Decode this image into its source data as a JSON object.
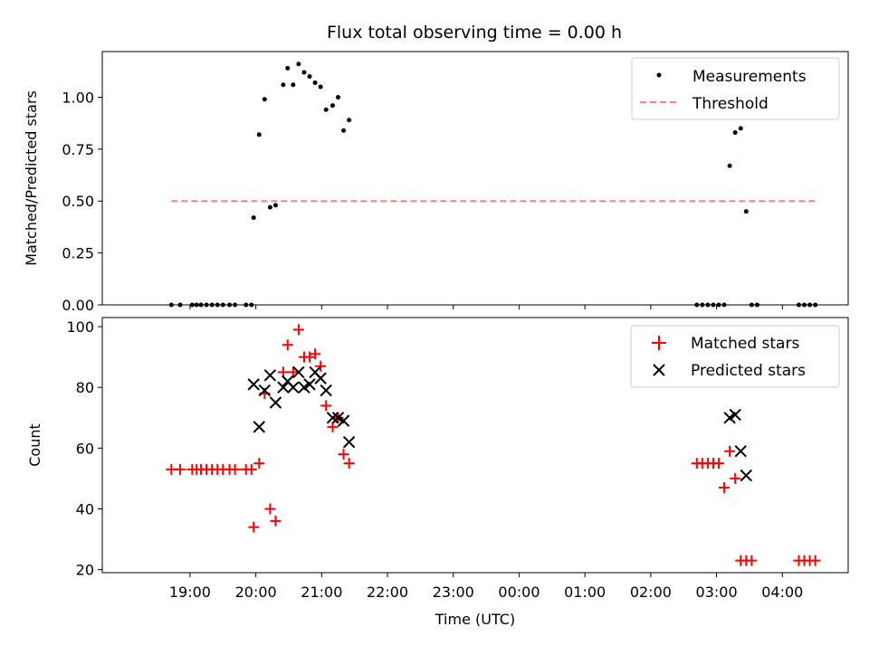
{
  "figure": {
    "title": "Flux total observing time = 0.00 h",
    "xlabel": "Time (UTC)",
    "x_ticks": [
      "19:00",
      "20:00",
      "21:00",
      "22:00",
      "23:00",
      "00:00",
      "01:00",
      "02:00",
      "03:00",
      "04:00"
    ]
  },
  "chart_data": [
    {
      "type": "scatter",
      "panel": "top",
      "ylabel": "Matched/Predicted stars",
      "ylim": [
        0,
        1.22
      ],
      "y_ticks": [
        "0.00",
        "0.25",
        "0.50",
        "0.75",
        "1.00"
      ],
      "legend": {
        "placement": "top-right"
      },
      "colors": {
        "measurements": "#000000",
        "threshold": "#ff7f7f"
      },
      "series": [
        {
          "name": "Measurements",
          "kind": "points",
          "points": [
            [
              "18:43",
              0
            ],
            [
              "18:51",
              0
            ],
            [
              "19:02",
              0
            ],
            [
              "19:06",
              0
            ],
            [
              "19:10",
              0
            ],
            [
              "19:15",
              0
            ],
            [
              "19:20",
              0
            ],
            [
              "19:25",
              0
            ],
            [
              "19:30",
              0
            ],
            [
              "19:36",
              0
            ],
            [
              "19:41",
              0
            ],
            [
              "19:51",
              0
            ],
            [
              "19:56",
              0
            ],
            [
              "19:58",
              0.42
            ],
            [
              "20:03",
              0.82
            ],
            [
              "20:08",
              0.99
            ],
            [
              "20:13",
              0.47
            ],
            [
              "20:18",
              0.48
            ],
            [
              "20:25",
              1.06
            ],
            [
              "20:29",
              1.14
            ],
            [
              "20:34",
              1.06
            ],
            [
              "20:39",
              1.16
            ],
            [
              "20:44",
              1.12
            ],
            [
              "20:49",
              1.1
            ],
            [
              "20:54",
              1.07
            ],
            [
              "20:59",
              1.05
            ],
            [
              "21:04",
              0.94
            ],
            [
              "21:10",
              0.96
            ],
            [
              "21:15",
              1.0
            ],
            [
              "21:20",
              0.84
            ],
            [
              "21:25",
              0.89
            ],
            [
              "02:42",
              0
            ],
            [
              "02:47",
              0
            ],
            [
              "02:52",
              0
            ],
            [
              "02:57",
              0
            ],
            [
              "03:02",
              0
            ],
            [
              "03:07",
              0
            ],
            [
              "03:12",
              0.67
            ],
            [
              "03:17",
              0.83
            ],
            [
              "03:22",
              0.85
            ],
            [
              "03:27",
              0.45
            ],
            [
              "03:32",
              0
            ],
            [
              "03:37",
              0
            ],
            [
              "04:15",
              0
            ],
            [
              "04:20",
              0
            ],
            [
              "04:25",
              0
            ],
            [
              "04:30",
              0
            ]
          ]
        },
        {
          "name": "Threshold",
          "kind": "line",
          "points": [
            [
              "18:43",
              0.5
            ],
            [
              "04:30",
              0.5
            ]
          ]
        }
      ]
    },
    {
      "type": "scatter",
      "panel": "bottom",
      "ylabel": "Count",
      "ylim": [
        19,
        103
      ],
      "y_ticks": [
        "20",
        "40",
        "60",
        "80",
        "100"
      ],
      "legend": {
        "placement": "top-right"
      },
      "colors": {
        "matched": "#ff0000",
        "predicted": "#000000"
      },
      "series": [
        {
          "name": "Matched stars",
          "marker": "plus",
          "points": [
            [
              "18:43",
              53
            ],
            [
              "18:51",
              53
            ],
            [
              "19:02",
              53
            ],
            [
              "19:06",
              53
            ],
            [
              "19:10",
              53
            ],
            [
              "19:15",
              53
            ],
            [
              "19:20",
              53
            ],
            [
              "19:25",
              53
            ],
            [
              "19:30",
              53
            ],
            [
              "19:36",
              53
            ],
            [
              "19:41",
              53
            ],
            [
              "19:51",
              53
            ],
            [
              "19:56",
              53
            ],
            [
              "19:58",
              34
            ],
            [
              "20:03",
              55
            ],
            [
              "20:08",
              78
            ],
            [
              "20:13",
              40
            ],
            [
              "20:18",
              36
            ],
            [
              "20:25",
              85
            ],
            [
              "20:29",
              94
            ],
            [
              "20:34",
              85
            ],
            [
              "20:39",
              99
            ],
            [
              "20:44",
              90
            ],
            [
              "20:49",
              90
            ],
            [
              "20:54",
              91
            ],
            [
              "20:59",
              87
            ],
            [
              "21:04",
              74
            ],
            [
              "21:10",
              67
            ],
            [
              "21:15",
              70
            ],
            [
              "21:20",
              58
            ],
            [
              "21:25",
              55
            ],
            [
              "02:42",
              55
            ],
            [
              "02:47",
              55
            ],
            [
              "02:52",
              55
            ],
            [
              "02:57",
              55
            ],
            [
              "03:02",
              55
            ],
            [
              "03:07",
              47
            ],
            [
              "03:12",
              59
            ],
            [
              "03:17",
              50
            ],
            [
              "03:22",
              23
            ],
            [
              "03:27",
              23
            ],
            [
              "03:32",
              23
            ],
            [
              "04:15",
              23
            ],
            [
              "04:20",
              23
            ],
            [
              "04:25",
              23
            ],
            [
              "04:30",
              23
            ]
          ]
        },
        {
          "name": "Predicted stars",
          "marker": "x",
          "points": [
            [
              "19:58",
              81
            ],
            [
              "20:03",
              67
            ],
            [
              "20:08",
              79
            ],
            [
              "20:13",
              84
            ],
            [
              "20:18",
              75
            ],
            [
              "20:25",
              80
            ],
            [
              "20:29",
              82
            ],
            [
              "20:34",
              80
            ],
            [
              "20:39",
              85
            ],
            [
              "20:44",
              80
            ],
            [
              "20:49",
              81
            ],
            [
              "20:54",
              85
            ],
            [
              "20:59",
              83
            ],
            [
              "21:04",
              79
            ],
            [
              "21:10",
              70
            ],
            [
              "21:15",
              70
            ],
            [
              "21:20",
              69
            ],
            [
              "21:25",
              62
            ],
            [
              "03:12",
              70
            ],
            [
              "03:17",
              71
            ],
            [
              "03:22",
              59
            ],
            [
              "03:27",
              51
            ]
          ]
        }
      ]
    }
  ]
}
